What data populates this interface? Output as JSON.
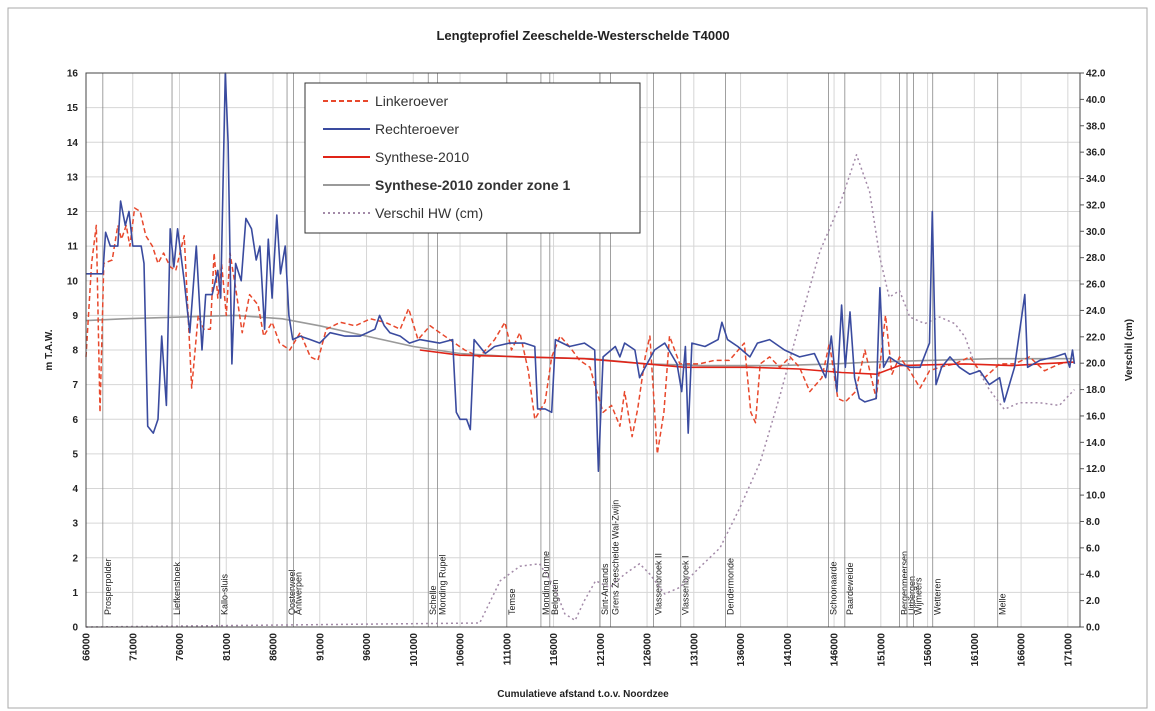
{
  "chart_data": {
    "type": "line",
    "title": "Lengteprofiel Zeeschelde-Westerschelde T4000",
    "x_label": "Cumulatieve afstand t.o.v. Noordzee",
    "y_label": "m T.A.W.",
    "y2_label": "Verschil (cm)",
    "xlim": [
      66000,
      172300
    ],
    "ylim": [
      0,
      16
    ],
    "y2lim": [
      0,
      42
    ],
    "xticks": [
      66000,
      71000,
      76000,
      81000,
      86000,
      91000,
      96000,
      101000,
      106000,
      111000,
      116000,
      121000,
      126000,
      131000,
      136000,
      141000,
      146000,
      151000,
      156000,
      161000,
      166000,
      171000
    ],
    "yticks": [
      0,
      1,
      2,
      3,
      4,
      5,
      6,
      7,
      8,
      9,
      10,
      11,
      12,
      13,
      14,
      15,
      16
    ],
    "y2ticks": [
      {
        "value": 0,
        "label": "0.0"
      },
      {
        "value": 2,
        "label": "2.0"
      },
      {
        "value": 4,
        "label": "4.0"
      },
      {
        "value": 6,
        "label": "6.0"
      },
      {
        "value": 8,
        "label": "8.0"
      },
      {
        "value": 10,
        "label": "10.0"
      },
      {
        "value": 12,
        "label": "12.0"
      },
      {
        "value": 14,
        "label": "14.0"
      },
      {
        "value": 16,
        "label": "16.0"
      },
      {
        "value": 18,
        "label": "18.0"
      },
      {
        "value": 20,
        "label": "20.0"
      },
      {
        "value": 22,
        "label": "22.0"
      },
      {
        "value": 24,
        "label": "24.0"
      },
      {
        "value": 26,
        "label": "26.0"
      },
      {
        "value": 28,
        "label": "28.0"
      },
      {
        "value": 30,
        "label": "30.0"
      },
      {
        "value": 32,
        "label": "32.0"
      },
      {
        "value": 34,
        "label": "34.0"
      },
      {
        "value": 36,
        "label": "36.0"
      },
      {
        "value": 38,
        "label": "38.0"
      },
      {
        "value": 40,
        "label": "40.0"
      },
      {
        "value": 42,
        "label": "42.0"
      }
    ],
    "grid": true,
    "legend": "top-left",
    "landmarks": [
      {
        "label": "Prosperpolder",
        "x": 67800
      },
      {
        "label": "Liefkenshoek",
        "x": 75200
      },
      {
        "label": "Kallo-sluis",
        "x": 80300
      },
      {
        "label": "Oosterweel",
        "x": 87500
      },
      {
        "label": "Antwerpen",
        "x": 88200
      },
      {
        "label": "Schelle",
        "x": 102600
      },
      {
        "label": "Monding Rupel",
        "x": 103600
      },
      {
        "label": "Temse",
        "x": 111000
      },
      {
        "label": "Monding Durme",
        "x": 114650
      },
      {
        "label": "Belgoten",
        "x": 115600
      },
      {
        "label": "Sint-Amands",
        "x": 120950
      },
      {
        "label": "Grens Zeeschelde Wal-Zwijn",
        "x": 122100
      },
      {
        "label": "Vlassenbroek II",
        "x": 126700
      },
      {
        "label": "Vlassenbroek I",
        "x": 129600
      },
      {
        "label": "Dendermonde",
        "x": 134400
      },
      {
        "label": "Schoonaarde",
        "x": 145400
      },
      {
        "label": "Paardeweide",
        "x": 147150
      },
      {
        "label": "Bergenmeersen",
        "x": 153000
      },
      {
        "label": "Uitbergen",
        "x": 153800
      },
      {
        "label": "Wijmeers",
        "x": 154500
      },
      {
        "label": "Wetteren",
        "x": 156550
      },
      {
        "label": "Melle",
        "x": 163500
      }
    ],
    "series": [
      {
        "name": "Linkeroever",
        "color": "#e8482c",
        "dash": "dashed",
        "x": [
          66000,
          66600,
          67100,
          67500,
          67900,
          68800,
          69400,
          69800,
          70300,
          70700,
          71200,
          71800,
          72400,
          73100,
          73700,
          74300,
          75000,
          75600,
          76500,
          77300,
          78000,
          78600,
          79300,
          79700,
          80100,
          80500,
          81000,
          81400,
          82000,
          82700,
          83500,
          84400,
          85000,
          85900,
          86700,
          87800,
          88900,
          90000,
          90800,
          91700,
          93200,
          94800,
          96400,
          98000,
          99600,
          100500,
          101500,
          102800,
          104900,
          106500,
          108100,
          109700,
          110800,
          111500,
          112400,
          113300,
          114000,
          115100,
          115800,
          116700,
          117700,
          118800,
          119900,
          120400,
          121300,
          122200,
          123100,
          123600,
          124400,
          125000,
          125800,
          126300,
          127100,
          127800,
          128400,
          129500,
          130600,
          131600,
          133200,
          134800,
          136400,
          137100,
          137600,
          138100,
          139100,
          140200,
          141300,
          142300,
          143400,
          144700,
          145500,
          146400,
          147200,
          148300,
          149300,
          150500,
          151500,
          152200,
          153000,
          154100,
          155200,
          156200,
          157300,
          158900,
          160500,
          162100,
          163700,
          165300,
          166900,
          168500,
          170100,
          171700
        ],
        "values": [
          7.8,
          10.5,
          11.6,
          6.2,
          10.5,
          10.6,
          11.6,
          11.2,
          11.6,
          11.0,
          12.1,
          12.0,
          11.3,
          11.0,
          10.5,
          10.8,
          10.4,
          10.3,
          11.3,
          6.9,
          9.0,
          8.6,
          8.6,
          10.8,
          9.5,
          10.5,
          9.0,
          10.8,
          9.8,
          8.5,
          9.6,
          9.3,
          8.4,
          8.8,
          8.2,
          8.0,
          8.5,
          7.8,
          7.7,
          8.6,
          8.8,
          8.7,
          8.9,
          8.8,
          8.6,
          9.2,
          8.3,
          8.7,
          8.3,
          8.0,
          7.8,
          8.3,
          8.8,
          8.0,
          8.5,
          7.4,
          6.0,
          6.5,
          7.8,
          8.4,
          8.1,
          7.7,
          7.5,
          7.0,
          6.2,
          6.4,
          5.8,
          6.8,
          5.5,
          6.3,
          7.8,
          8.4,
          5.0,
          6.2,
          8.4,
          7.6,
          7.6,
          7.6,
          7.7,
          7.7,
          8.2,
          6.2,
          5.9,
          7.6,
          7.8,
          7.5,
          7.8,
          7.5,
          6.8,
          7.2,
          8.2,
          6.6,
          6.5,
          6.8,
          8.0,
          6.6,
          9.0,
          7.3,
          7.8,
          7.4,
          6.9,
          7.4,
          7.5,
          7.6,
          7.8,
          7.2,
          7.6,
          7.6,
          7.8,
          7.4,
          7.6,
          7.7
        ]
      },
      {
        "name": "Rechteroever",
        "color": "#3a4b9f",
        "dash": "solid",
        "x": [
          66000,
          67800,
          68100,
          68600,
          69400,
          69700,
          70200,
          70600,
          71000,
          71900,
          72200,
          72600,
          73200,
          73700,
          74100,
          74600,
          75000,
          75400,
          75800,
          76500,
          77100,
          77800,
          78400,
          78800,
          79500,
          80100,
          80400,
          80900,
          81200,
          81600,
          82000,
          82600,
          83100,
          83700,
          84200,
          84600,
          85100,
          85500,
          85900,
          86400,
          86800,
          87300,
          87700,
          88100,
          88900,
          90000,
          91000,
          92100,
          93700,
          95300,
          96900,
          97400,
          97900,
          98500,
          99600,
          100600,
          101700,
          103800,
          105200,
          105600,
          106000,
          106700,
          107100,
          107500,
          108700,
          109700,
          111300,
          112900,
          114000,
          114300,
          115100,
          115800,
          116200,
          117700,
          119300,
          120400,
          120800,
          121300,
          122600,
          123100,
          123600,
          124700,
          125200,
          125800,
          126800,
          127900,
          129200,
          129700,
          130100,
          130400,
          130800,
          132200,
          133600,
          134000,
          134600,
          135700,
          137000,
          137800,
          139100,
          140700,
          142300,
          143900,
          145100,
          145700,
          146300,
          146800,
          147200,
          147700,
          148200,
          148700,
          149300,
          150500,
          150900,
          151300,
          151900,
          153000,
          154100,
          155200,
          156200,
          156500,
          156900,
          157500,
          158400,
          159400,
          160500,
          161600,
          162600,
          163700,
          164200,
          165300,
          166400,
          166700,
          168000,
          169600,
          170700,
          171200,
          171500,
          171700
        ],
        "values": [
          10.2,
          10.2,
          11.4,
          11.0,
          11.0,
          12.3,
          11.6,
          12.0,
          11.0,
          11.0,
          10.5,
          5.8,
          5.6,
          6.0,
          8.4,
          6.4,
          11.5,
          10.4,
          11.5,
          10.0,
          8.5,
          11.0,
          8.0,
          9.6,
          9.6,
          10.3,
          9.5,
          16.0,
          14.0,
          7.6,
          10.5,
          10.0,
          11.8,
          11.5,
          10.6,
          11.0,
          8.6,
          11.2,
          9.5,
          11.9,
          10.2,
          11.0,
          9.0,
          8.3,
          8.4,
          8.3,
          8.2,
          8.5,
          8.4,
          8.4,
          8.6,
          9.0,
          8.7,
          8.5,
          8.4,
          8.2,
          8.3,
          8.2,
          8.3,
          6.2,
          6.0,
          6.0,
          5.7,
          8.3,
          7.9,
          8.1,
          8.2,
          8.2,
          8.1,
          6.3,
          6.3,
          6.2,
          8.3,
          8.1,
          8.2,
          8.0,
          4.5,
          7.8,
          8.1,
          7.8,
          8.2,
          8.0,
          7.2,
          7.5,
          8.0,
          8.2,
          7.6,
          6.8,
          8.1,
          5.6,
          8.2,
          8.1,
          8.3,
          8.8,
          8.3,
          8.1,
          7.8,
          8.2,
          8.3,
          8.0,
          7.8,
          7.9,
          7.2,
          8.4,
          6.8,
          9.3,
          7.5,
          9.1,
          7.2,
          6.6,
          6.5,
          6.6,
          9.8,
          7.5,
          7.8,
          7.6,
          7.5,
          7.5,
          8.2,
          12.0,
          7.0,
          7.5,
          7.8,
          7.5,
          7.3,
          7.4,
          7.0,
          7.2,
          6.5,
          7.5,
          9.6,
          7.5,
          7.7,
          7.8,
          7.9,
          7.5,
          8.0,
          7.6
        ]
      },
      {
        "name": "Synthese-2010",
        "color": "#e02418",
        "dash": "solid",
        "x": [
          101700,
          106000,
          112900,
          119300,
          123600,
          130100,
          137000,
          142300,
          146800,
          150500,
          152000,
          153000,
          160000,
          165000,
          168000,
          171700
        ],
        "values": [
          8.0,
          7.85,
          7.8,
          7.75,
          7.65,
          7.5,
          7.5,
          7.45,
          7.35,
          7.3,
          7.45,
          7.55,
          7.6,
          7.55,
          7.6,
          7.65
        ]
      },
      {
        "name": "Synthese-2010 zonder zone 1",
        "color": "#9a9a9a",
        "dash": "solid",
        "font_weight": "bold",
        "x": [
          66000,
          70000,
          76000,
          82000,
          87000,
          91000,
          96000,
          101000,
          106000,
          112000,
          120000,
          126000,
          132000,
          140000,
          146000,
          150000,
          156000,
          163000,
          171700
        ],
        "values": [
          8.85,
          8.9,
          8.95,
          9.0,
          8.9,
          8.7,
          8.4,
          8.1,
          7.9,
          7.8,
          7.75,
          7.6,
          7.55,
          7.55,
          7.6,
          7.65,
          7.7,
          7.75,
          7.75
        ]
      },
      {
        "name": "Verschil HW (cm)",
        "color": "#a38aa8",
        "dash": "dotted",
        "axis": "y2",
        "x": [
          66000,
          108100,
          110300,
          112400,
          114500,
          116100,
          117200,
          118300,
          119300,
          120500,
          122000,
          123600,
          125200,
          126300,
          127900,
          129500,
          131600,
          133800,
          135900,
          138100,
          140200,
          142300,
          144500,
          146600,
          148400,
          149800,
          150900,
          151900,
          153000,
          154100,
          155700,
          157300,
          158900,
          160000,
          161000,
          162600,
          164200,
          165800,
          168000,
          170100,
          171700
        ],
        "values": [
          0,
          0.3,
          3.5,
          4.6,
          4.8,
          3.0,
          1.0,
          0.5,
          2.0,
          3.5,
          3.0,
          4.0,
          4.8,
          4.0,
          2.5,
          3.0,
          4.5,
          6.0,
          9.0,
          12.5,
          17.5,
          23.0,
          28.5,
          32.0,
          35.8,
          33.0,
          28.0,
          25.0,
          25.5,
          23.5,
          23.0,
          23.5,
          23.0,
          22.0,
          20.0,
          18.0,
          16.5,
          17.0,
          17.0,
          16.8,
          18.0
        ]
      }
    ]
  }
}
